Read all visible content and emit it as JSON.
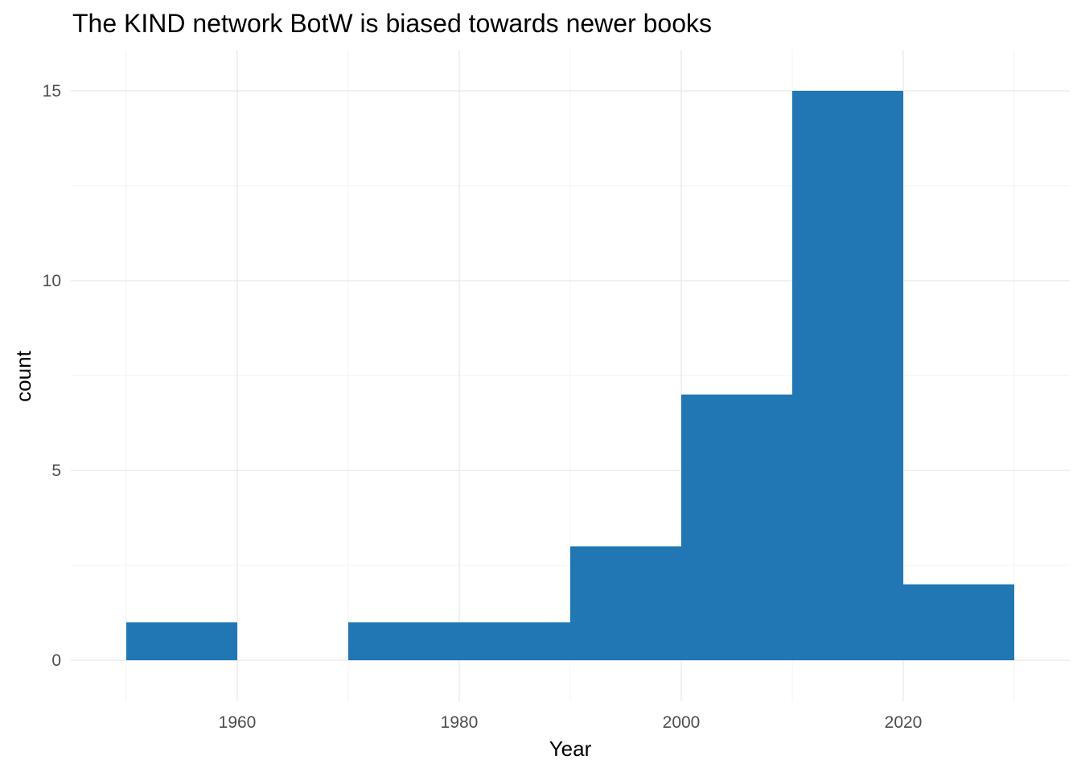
{
  "chart_data": {
    "type": "bar",
    "title": "The KIND network BotW is biased towards newer books",
    "xlabel": "Year",
    "ylabel": "count",
    "bins": [
      {
        "start": 1950,
        "end": 1960,
        "count": 1
      },
      {
        "start": 1960,
        "end": 1970,
        "count": 0
      },
      {
        "start": 1970,
        "end": 1980,
        "count": 1
      },
      {
        "start": 1980,
        "end": 1990,
        "count": 1
      },
      {
        "start": 1990,
        "end": 2000,
        "count": 3
      },
      {
        "start": 2000,
        "end": 2010,
        "count": 7
      },
      {
        "start": 2010,
        "end": 2020,
        "count": 15
      },
      {
        "start": 2020,
        "end": 2030,
        "count": 2
      }
    ],
    "x_ticks": [
      "1960",
      "1980",
      "2000",
      "2020"
    ],
    "y_ticks": [
      "0",
      "5",
      "10",
      "15"
    ],
    "xlim": [
      1945,
      1950
    ],
    "ylim": [
      0,
      15
    ],
    "grid": true,
    "legend": "none",
    "bar_color": "#2077b4"
  }
}
